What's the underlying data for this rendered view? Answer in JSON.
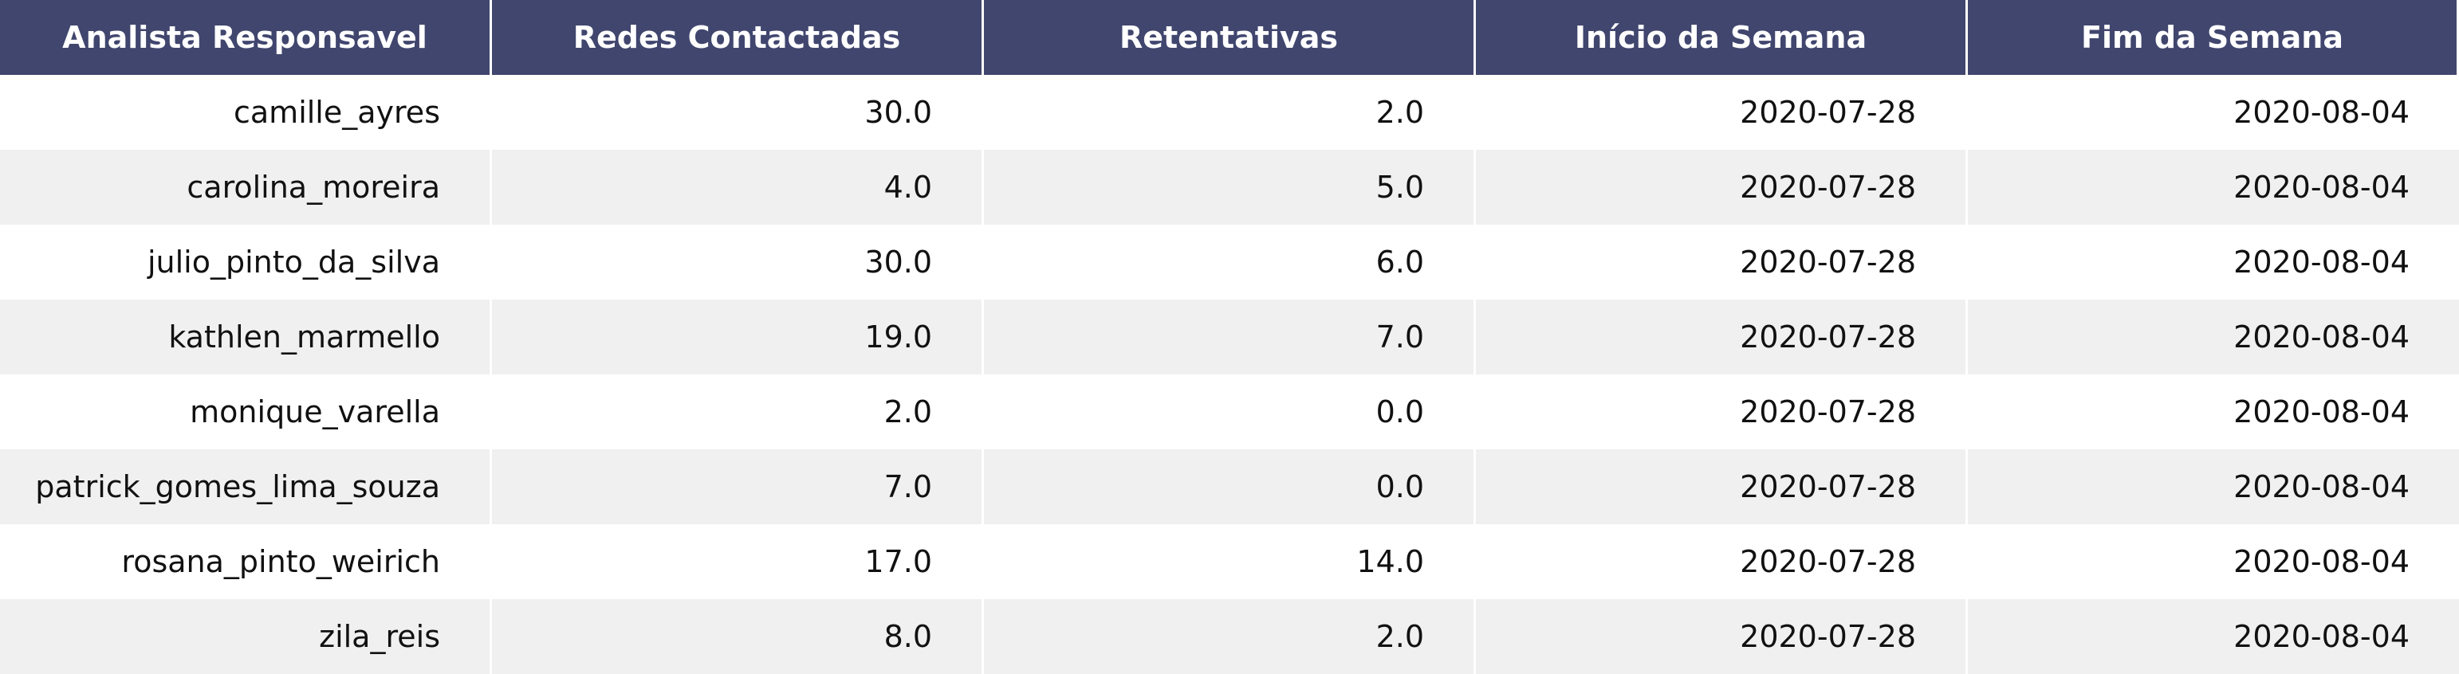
{
  "table": {
    "headers": [
      "Analista Responsavel",
      "Redes Contactadas",
      "Retentativas",
      "Início da Semana",
      "Fim da Semana"
    ],
    "rows": [
      [
        "camille_ayres",
        "30.0",
        "2.0",
        "2020-07-28",
        "2020-08-04"
      ],
      [
        "carolina_moreira",
        "4.0",
        "5.0",
        "2020-07-28",
        "2020-08-04"
      ],
      [
        "julio_pinto_da_silva",
        "30.0",
        "6.0",
        "2020-07-28",
        "2020-08-04"
      ],
      [
        "kathlen_marmello",
        "19.0",
        "7.0",
        "2020-07-28",
        "2020-08-04"
      ],
      [
        "monique_varella",
        "2.0",
        "0.0",
        "2020-07-28",
        "2020-08-04"
      ],
      [
        "patrick_gomes_lima_souza",
        "7.0",
        "0.0",
        "2020-07-28",
        "2020-08-04"
      ],
      [
        "rosana_pinto_weirich",
        "17.0",
        "14.0",
        "2020-07-28",
        "2020-08-04"
      ],
      [
        "zila_reis",
        "8.0",
        "2.0",
        "2020-07-28",
        "2020-08-04"
      ]
    ]
  },
  "colors": {
    "header_bg": "#40466e",
    "header_text": "#ffffff",
    "row_even_bg": "#f0f0f0",
    "row_odd_bg": "#ffffff"
  }
}
